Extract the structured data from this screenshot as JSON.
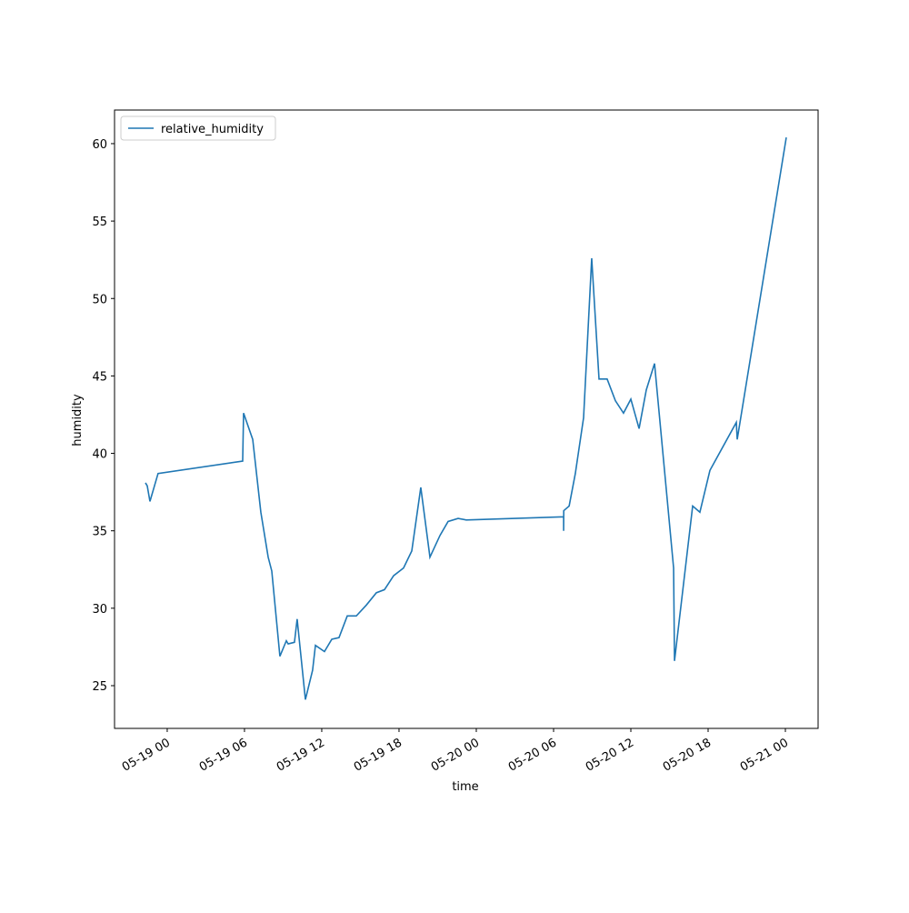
{
  "chart_data": {
    "type": "line",
    "xlabel": "time",
    "ylabel": "humidity",
    "x": [
      -1.69,
      -1.55,
      -1.34,
      -0.71,
      5.86,
      5.93,
      6.64,
      7.27,
      7.84,
      8.12,
      8.75,
      9.25,
      9.39,
      9.88,
      10.09,
      10.73,
      11.29,
      11.51,
      12.21,
      12.78,
      13.34,
      13.98,
      14.68,
      15.46,
      16.24,
      16.87,
      17.58,
      18.35,
      18.99,
      19.69,
      20.4,
      21.18,
      21.81,
      22.59,
      23.22,
      30.78,
      30.78,
      30.79,
      31.21,
      31.69,
      32.33,
      32.96,
      33.53,
      34.16,
      34.8,
      35.43,
      36.0,
      36.64,
      37.2,
      37.84,
      39.32,
      39.39,
      40.8,
      41.36,
      42.14,
      44.19,
      44.26,
      48.07
    ],
    "series": [
      {
        "name": "relative_humidity",
        "color": "#1f77b4",
        "values": [
          38.1,
          37.9,
          36.9,
          38.7,
          39.5,
          42.6,
          40.9,
          36.2,
          33.3,
          32.4,
          26.9,
          27.9,
          27.7,
          27.8,
          29.3,
          24.1,
          26.0,
          27.6,
          27.2,
          28.0,
          28.1,
          29.5,
          29.5,
          30.2,
          31.0,
          31.2,
          32.1,
          32.6,
          33.7,
          37.8,
          33.3,
          34.7,
          35.6,
          35.8,
          35.7,
          35.9,
          35.0,
          36.3,
          36.6,
          38.7,
          42.3,
          52.6,
          44.8,
          44.8,
          43.4,
          42.6,
          43.5,
          41.6,
          44.1,
          45.8,
          32.6,
          26.6,
          36.6,
          36.2,
          38.9,
          42.0,
          40.9,
          60.4
        ]
      }
    ],
    "xlim": [
      -4.09,
      50.54
    ],
    "xticks": [
      {
        "value": 0,
        "label": "05-19 00"
      },
      {
        "value": 6,
        "label": "05-19 06"
      },
      {
        "value": 12,
        "label": "05-19 12"
      },
      {
        "value": 18,
        "label": "05-19 18"
      },
      {
        "value": 24,
        "label": "05-20 00"
      },
      {
        "value": 30,
        "label": "05-20 06"
      },
      {
        "value": 36,
        "label": "05-20 12"
      },
      {
        "value": 42,
        "label": "05-20 18"
      },
      {
        "value": 48,
        "label": "05-21 00"
      }
    ],
    "ylim": [
      22.24,
      62.17
    ],
    "yticks": [
      25,
      30,
      35,
      40,
      45,
      50,
      55,
      60
    ],
    "legend": "upper left"
  }
}
